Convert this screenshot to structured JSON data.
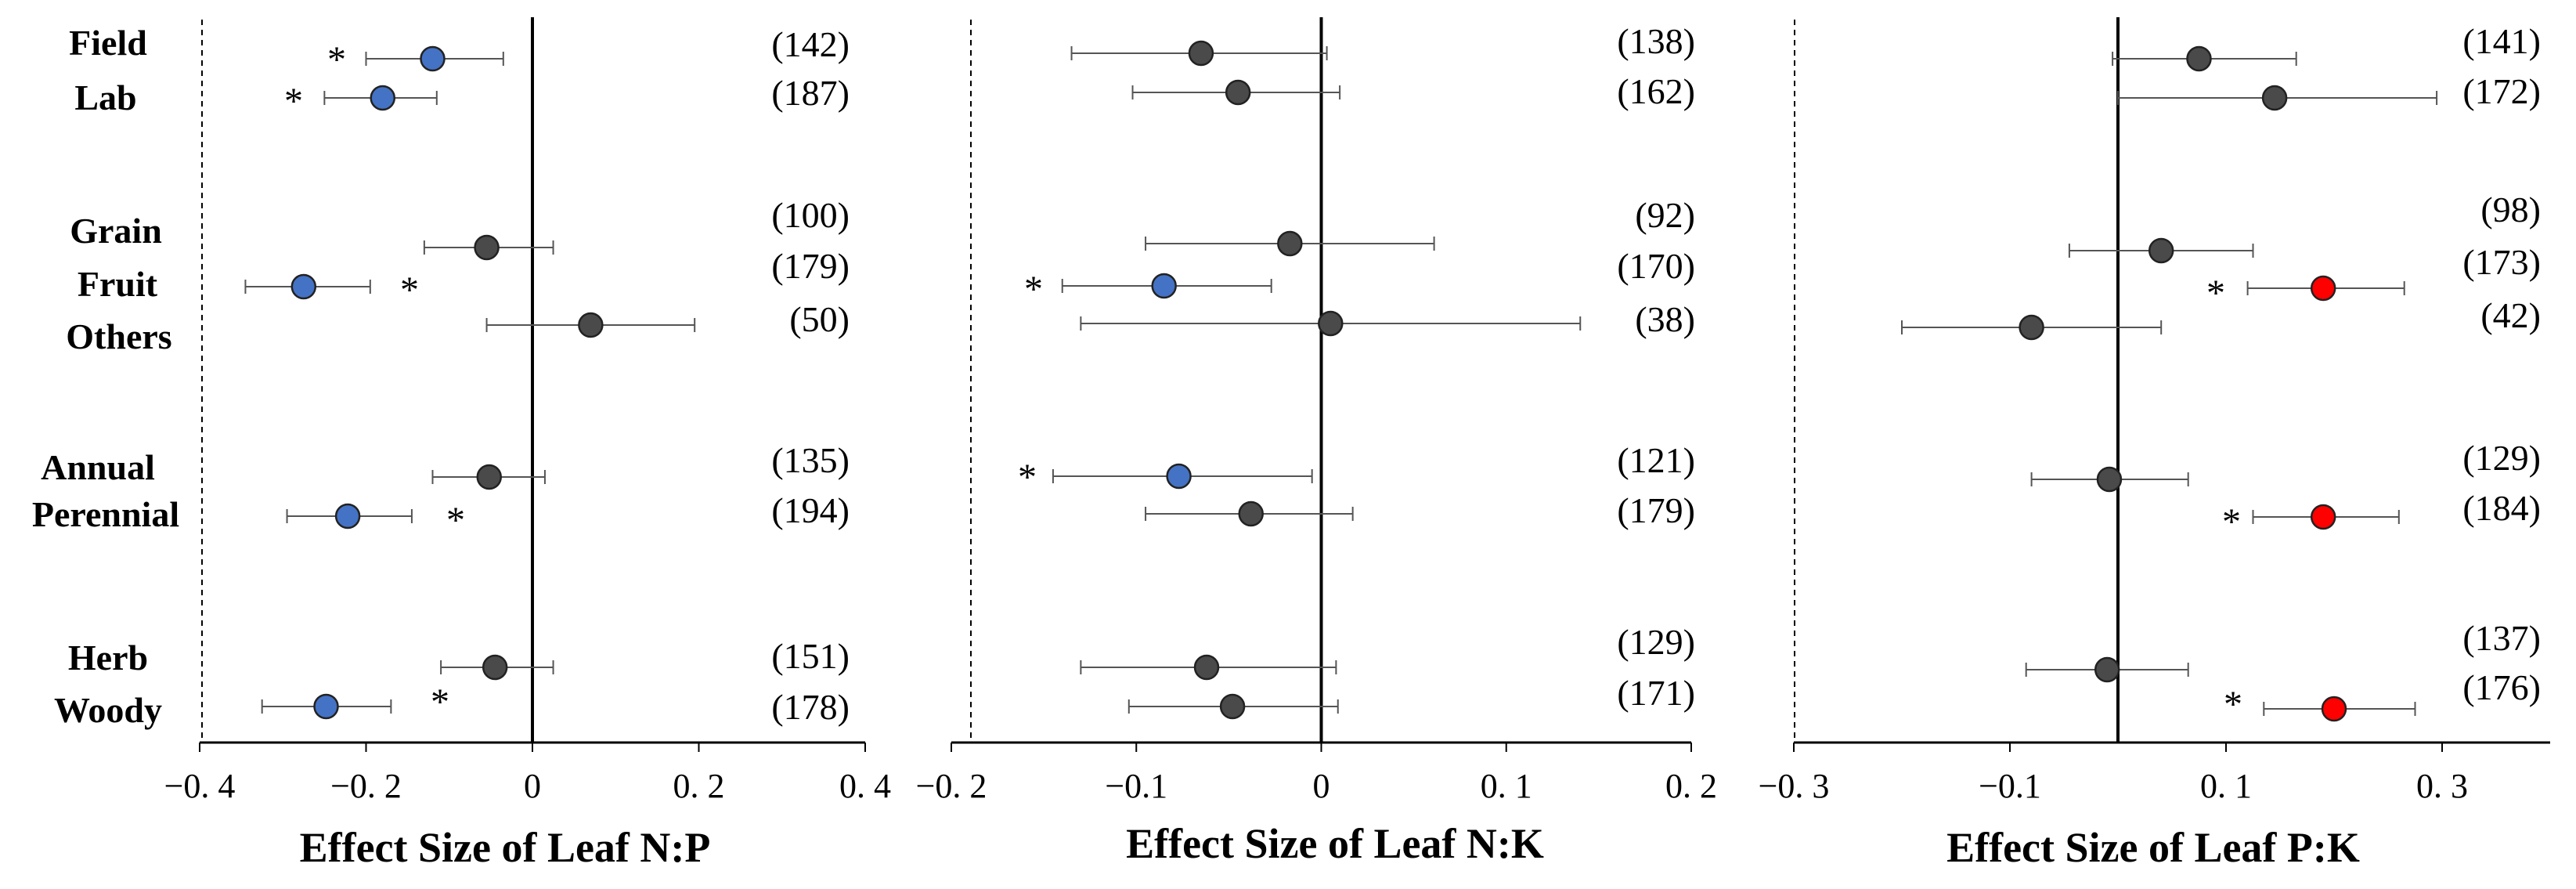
{
  "chart_data": [
    {
      "type": "forest",
      "xlabel": "Effect Size of Leaf N:P",
      "xlim": [
        -0.4,
        0.4
      ],
      "ticks": [
        -0.4,
        -0.2,
        0,
        0.2,
        0.4
      ],
      "tick_labels": [
        "−0. 4",
        "−0. 2",
        "0",
        "0. 2",
        "0. 4"
      ],
      "points": [
        {
          "category": "Field",
          "estimate": -0.12,
          "ci_low": -0.2,
          "ci_high": -0.035,
          "n": "(142)",
          "significant": true,
          "color": "#4472C4"
        },
        {
          "category": "Lab",
          "estimate": -0.18,
          "ci_low": -0.25,
          "ci_high": -0.115,
          "n": "(187)",
          "significant": true,
          "color": "#4472C4"
        },
        {
          "category": "Grain",
          "estimate": -0.055,
          "ci_low": -0.13,
          "ci_high": 0.025,
          "n": "(100)",
          "significant": false,
          "color": "#4a4a4a"
        },
        {
          "category": "Fruit",
          "estimate": -0.275,
          "ci_low": -0.345,
          "ci_high": -0.195,
          "n": "(179)",
          "significant": true,
          "color": "#4472C4"
        },
        {
          "category": "Others",
          "estimate": 0.07,
          "ci_low": -0.055,
          "ci_high": 0.195,
          "n": "(50)",
          "significant": false,
          "color": "#4a4a4a"
        },
        {
          "category": "Annual",
          "estimate": -0.052,
          "ci_low": -0.12,
          "ci_high": 0.015,
          "n": "(135)",
          "significant": false,
          "color": "#4a4a4a"
        },
        {
          "category": "Perennial",
          "estimate": -0.222,
          "ci_low": -0.295,
          "ci_high": -0.145,
          "n": "(194)",
          "significant": true,
          "color": "#4472C4"
        },
        {
          "category": "Herb",
          "estimate": -0.045,
          "ci_low": -0.11,
          "ci_high": 0.025,
          "n": "(151)",
          "significant": false,
          "color": "#4a4a4a"
        },
        {
          "category": "Woody",
          "estimate": -0.248,
          "ci_low": -0.325,
          "ci_high": -0.17,
          "n": "(178)",
          "significant": true,
          "color": "#4472C4"
        }
      ]
    },
    {
      "type": "forest",
      "xlabel": "Effect Size of Leaf N:K",
      "xlim": [
        -0.2,
        0.2
      ],
      "ticks": [
        -0.2,
        -0.1,
        0,
        0.1,
        0.2
      ],
      "tick_labels": [
        "−0. 2",
        "−0.1",
        "0",
        "0. 1",
        "0. 2"
      ],
      "points": [
        {
          "category": "Field",
          "estimate": -0.065,
          "ci_low": -0.135,
          "ci_high": 0.003,
          "n": "(138)",
          "significant": false,
          "color": "#4a4a4a"
        },
        {
          "category": "Lab",
          "estimate": -0.045,
          "ci_low": -0.102,
          "ci_high": 0.01,
          "n": "(162)",
          "significant": false,
          "color": "#4a4a4a"
        },
        {
          "category": "Grain",
          "estimate": -0.017,
          "ci_low": -0.095,
          "ci_high": 0.061,
          "n": "(92)",
          "significant": false,
          "color": "#4a4a4a"
        },
        {
          "category": "Fruit",
          "estimate": -0.085,
          "ci_low": -0.14,
          "ci_high": -0.027,
          "n": "(170)",
          "significant": true,
          "color": "#4472C4"
        },
        {
          "category": "Others",
          "estimate": 0.005,
          "ci_low": -0.13,
          "ci_high": 0.14,
          "n": "(38)",
          "significant": false,
          "color": "#4a4a4a"
        },
        {
          "category": "Annual",
          "estimate": -0.077,
          "ci_low": -0.145,
          "ci_high": -0.005,
          "n": "(121)",
          "significant": true,
          "color": "#4472C4"
        },
        {
          "category": "Perennial",
          "estimate": -0.038,
          "ci_low": -0.095,
          "ci_high": 0.017,
          "n": "(179)",
          "significant": false,
          "color": "#4a4a4a"
        },
        {
          "category": "Herb",
          "estimate": -0.062,
          "ci_low": -0.13,
          "ci_high": 0.008,
          "n": "(129)",
          "significant": false,
          "color": "#4a4a4a"
        },
        {
          "category": "Woody",
          "estimate": -0.048,
          "ci_low": -0.104,
          "ci_high": 0.009,
          "n": "(171)",
          "significant": false,
          "color": "#4a4a4a"
        }
      ]
    },
    {
      "type": "forest",
      "xlabel": "Effect Size of Leaf P:K",
      "xlim": [
        -0.3,
        0.4
      ],
      "ticks": [
        -0.3,
        -0.1,
        0.1,
        0.3
      ],
      "tick_labels": [
        "−0. 3",
        "−0.1",
        "0. 1",
        "0. 3"
      ],
      "points": [
        {
          "category": "Field",
          "estimate": 0.075,
          "ci_low": -0.005,
          "ci_high": 0.165,
          "n": "(141)",
          "significant": false,
          "color": "#4a4a4a"
        },
        {
          "category": "Lab",
          "estimate": 0.145,
          "ci_low": 0.0,
          "ci_high": 0.295,
          "n": "(172)",
          "significant": false,
          "color": "#4a4a4a"
        },
        {
          "category": "Grain",
          "estimate": 0.04,
          "ci_low": -0.045,
          "ci_high": 0.125,
          "n": "(98)",
          "significant": false,
          "color": "#4a4a4a"
        },
        {
          "category": "Fruit",
          "estimate": 0.19,
          "ci_low": 0.12,
          "ci_high": 0.265,
          "n": "(173)",
          "significant": true,
          "color": "#ff0000"
        },
        {
          "category": "Others",
          "estimate": -0.08,
          "ci_low": -0.2,
          "ci_high": 0.04,
          "n": "(42)",
          "significant": false,
          "color": "#4a4a4a"
        },
        {
          "category": "Annual",
          "estimate": -0.008,
          "ci_low": -0.08,
          "ci_high": 0.065,
          "n": "(129)",
          "significant": false,
          "color": "#4a4a4a"
        },
        {
          "category": "Perennial",
          "estimate": 0.19,
          "ci_low": 0.125,
          "ci_high": 0.26,
          "n": "(184)",
          "significant": true,
          "color": "#ff0000"
        },
        {
          "category": "Herb",
          "estimate": -0.01,
          "ci_low": -0.085,
          "ci_high": 0.065,
          "n": "(137)",
          "significant": false,
          "color": "#4a4a4a"
        },
        {
          "category": "Woody",
          "estimate": 0.2,
          "ci_low": 0.135,
          "ci_high": 0.275,
          "n": "(176)",
          "significant": true,
          "color": "#ff0000"
        }
      ]
    }
  ]
}
